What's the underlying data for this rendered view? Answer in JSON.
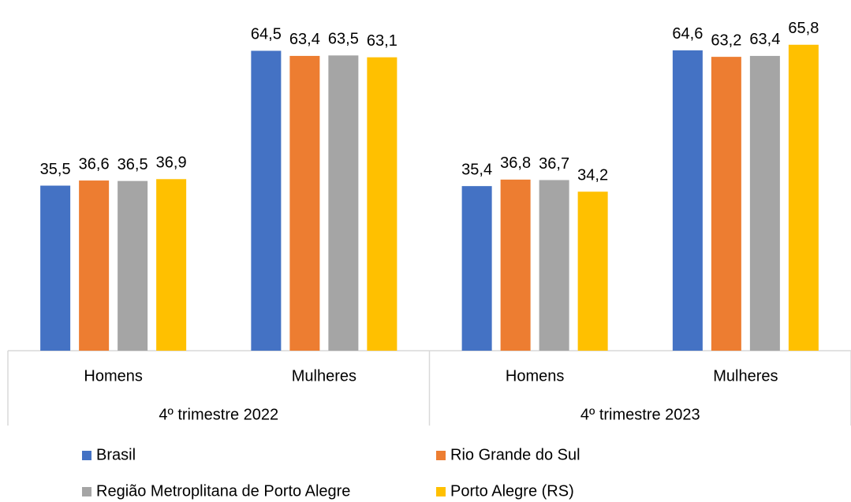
{
  "chart_data": {
    "type": "bar",
    "categories": [
      "Homens",
      "Mulheres",
      "Homens",
      "Mulheres"
    ],
    "groups": [
      "4º trimestre 2022",
      "4º trimestre 2023"
    ],
    "series": [
      {
        "name": "Brasil",
        "color": "#4472c4",
        "values": [
          35.5,
          64.5,
          35.4,
          64.6
        ],
        "value_labels": [
          "35,5",
          "64,5",
          "35,4",
          "64,6"
        ]
      },
      {
        "name": "Rio Grande do Sul",
        "color": "#ed7d31",
        "values": [
          36.6,
          63.4,
          36.8,
          63.2
        ],
        "value_labels": [
          "36,6",
          "63,4",
          "36,8",
          "63,2"
        ]
      },
      {
        "name": "Região Metroplitana de Porto Alegre",
        "color": "#a5a5a5",
        "values": [
          36.5,
          63.5,
          36.7,
          63.4
        ],
        "value_labels": [
          "36,5",
          "63,5",
          "36,7",
          "63,4"
        ]
      },
      {
        "name": "Porto Alegre (RS)",
        "color": "#ffc000",
        "values": [
          36.9,
          63.1,
          34.2,
          65.8
        ],
        "value_labels": [
          "36,9",
          "63,1",
          "34,2",
          "65,8"
        ]
      }
    ]
  }
}
